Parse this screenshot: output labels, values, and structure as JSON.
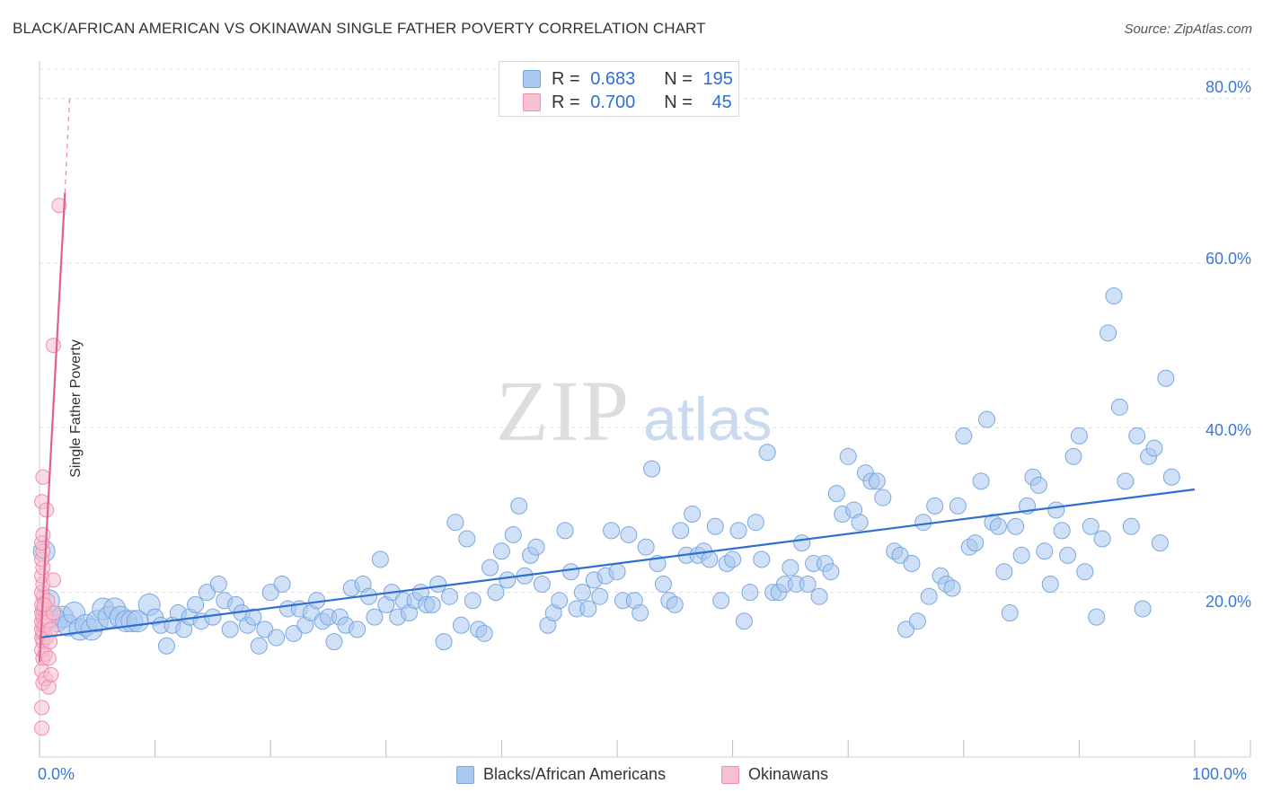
{
  "title": "BLACK/AFRICAN AMERICAN VS OKINAWAN SINGLE FATHER POVERTY CORRELATION CHART",
  "source": "Source: ZipAtlas.com",
  "watermark": {
    "zip": "ZIP",
    "atlas": "atlas"
  },
  "stats": [
    {
      "r_label": "R =",
      "r_value": "0.683",
      "n_label": "N =",
      "n_value": "195",
      "color": "#aac8f0",
      "border": "#7aa7e0"
    },
    {
      "r_label": "R =",
      "r_value": "0.700",
      "n_label": "N =",
      "n_value": "45",
      "color": "#f7bfd0",
      "border": "#ec8fac"
    }
  ],
  "legend": [
    {
      "label": "Blacks/African Americans",
      "color": "#aac8f0",
      "border": "#7aa7e0"
    },
    {
      "label": "Okinawans",
      "color": "#f7bfd0",
      "border": "#ec8fac"
    }
  ],
  "chart_data": {
    "type": "scatter",
    "title": "BLACK/AFRICAN AMERICAN VS OKINAWAN SINGLE FATHER POVERTY CORRELATION CHART",
    "xlabel": "",
    "ylabel": "Single Father Poverty",
    "xlim": [
      0,
      100
    ],
    "ylim": [
      0,
      83
    ],
    "x_tick_labels": [
      "0.0%",
      "100.0%"
    ],
    "y_ticks": [
      20,
      40,
      60,
      80
    ],
    "y_tick_labels": [
      "20.0%",
      "40.0%",
      "60.0%",
      "80.0%"
    ],
    "grid": true,
    "legend_position": "bottom",
    "series": [
      {
        "name": "Blacks/African Americans",
        "color": "#aac8f0",
        "edge": "#7aa7e0",
        "trend": {
          "x0": 0,
          "y0": 14.5,
          "x1": 100,
          "y1": 32.5,
          "color": "#2f6fcf"
        },
        "points": [
          [
            0.4,
            25
          ],
          [
            0.8,
            19
          ],
          [
            1.2,
            17
          ],
          [
            1.5,
            16.5
          ],
          [
            2,
            17
          ],
          [
            2.5,
            16
          ],
          [
            3,
            17.5
          ],
          [
            3.5,
            15.5
          ],
          [
            4,
            16
          ],
          [
            4.5,
            15.5
          ],
          [
            5,
            16.5
          ],
          [
            5.5,
            18
          ],
          [
            6,
            17
          ],
          [
            6.5,
            18
          ],
          [
            7,
            17
          ],
          [
            7.5,
            16.5
          ],
          [
            8,
            16.5
          ],
          [
            8.5,
            16.5
          ],
          [
            9.5,
            18.5
          ],
          [
            10,
            17
          ],
          [
            10.5,
            16
          ],
          [
            11,
            13.5
          ],
          [
            11.5,
            16
          ],
          [
            12,
            17.5
          ],
          [
            12.5,
            15.5
          ],
          [
            13,
            17
          ],
          [
            13.5,
            18.5
          ],
          [
            14,
            16.5
          ],
          [
            14.5,
            20
          ],
          [
            15,
            17
          ],
          [
            15.5,
            21
          ],
          [
            16,
            19
          ],
          [
            16.5,
            15.5
          ],
          [
            17,
            18.5
          ],
          [
            17.5,
            17.5
          ],
          [
            18,
            16
          ],
          [
            18.5,
            17
          ],
          [
            19,
            13.5
          ],
          [
            19.5,
            15.5
          ],
          [
            20,
            20
          ],
          [
            20.5,
            14.5
          ],
          [
            21,
            21
          ],
          [
            21.5,
            18
          ],
          [
            22,
            15
          ],
          [
            22.5,
            18
          ],
          [
            23,
            16
          ],
          [
            23.5,
            17.5
          ],
          [
            24,
            19
          ],
          [
            24.5,
            16.5
          ],
          [
            25,
            17
          ],
          [
            25.5,
            14
          ],
          [
            26,
            17
          ],
          [
            26.5,
            16
          ],
          [
            27,
            20.5
          ],
          [
            27.5,
            15.5
          ],
          [
            28,
            21
          ],
          [
            28.5,
            19.5
          ],
          [
            29,
            17
          ],
          [
            29.5,
            24
          ],
          [
            30,
            18.5
          ],
          [
            30.5,
            20
          ],
          [
            31,
            17
          ],
          [
            31.5,
            19
          ],
          [
            32,
            17.5
          ],
          [
            32.5,
            19
          ],
          [
            33,
            20
          ],
          [
            33.5,
            18.5
          ],
          [
            34,
            18.5
          ],
          [
            34.5,
            21
          ],
          [
            35,
            14
          ],
          [
            35.5,
            19.5
          ],
          [
            36,
            28.5
          ],
          [
            36.5,
            16
          ],
          [
            37,
            26.5
          ],
          [
            37.5,
            19
          ],
          [
            38,
            15.5
          ],
          [
            38.5,
            15
          ],
          [
            39,
            23
          ],
          [
            39.5,
            20
          ],
          [
            40,
            25
          ],
          [
            40.5,
            21.5
          ],
          [
            41,
            27
          ],
          [
            41.5,
            30.5
          ],
          [
            42,
            22
          ],
          [
            42.5,
            24.5
          ],
          [
            43,
            25.5
          ],
          [
            43.5,
            21
          ],
          [
            44,
            16
          ],
          [
            44.5,
            17.5
          ],
          [
            45,
            19
          ],
          [
            45.5,
            27.5
          ],
          [
            46,
            22.5
          ],
          [
            46.5,
            18
          ],
          [
            47,
            20
          ],
          [
            47.5,
            18
          ],
          [
            48,
            21.5
          ],
          [
            48.5,
            19.5
          ],
          [
            49,
            22
          ],
          [
            49.5,
            27.5
          ],
          [
            50,
            22.5
          ],
          [
            50.5,
            19
          ],
          [
            51,
            27
          ],
          [
            51.5,
            19
          ],
          [
            52,
            17.5
          ],
          [
            52.5,
            25.5
          ],
          [
            53,
            35
          ],
          [
            53.5,
            23.5
          ],
          [
            54,
            21
          ],
          [
            54.5,
            19
          ],
          [
            55,
            18.5
          ],
          [
            55.5,
            27.5
          ],
          [
            56,
            24.5
          ],
          [
            56.5,
            29.5
          ],
          [
            57,
            24.5
          ],
          [
            57.5,
            25
          ],
          [
            58,
            24
          ],
          [
            58.5,
            28
          ],
          [
            59,
            19
          ],
          [
            59.5,
            23.5
          ],
          [
            60,
            24
          ],
          [
            60.5,
            27.5
          ],
          [
            61,
            16.5
          ],
          [
            61.5,
            20
          ],
          [
            62,
            28.5
          ],
          [
            62.5,
            24
          ],
          [
            63,
            37
          ],
          [
            63.5,
            20
          ],
          [
            64,
            20
          ],
          [
            64.5,
            21
          ],
          [
            65,
            23
          ],
          [
            65.5,
            21
          ],
          [
            66,
            26
          ],
          [
            66.5,
            21
          ],
          [
            67,
            23.5
          ],
          [
            67.5,
            19.5
          ],
          [
            68,
            23.5
          ],
          [
            68.5,
            22.5
          ],
          [
            69,
            32
          ],
          [
            69.5,
            29.5
          ],
          [
            70,
            36.5
          ],
          [
            70.5,
            30
          ],
          [
            71,
            28.5
          ],
          [
            71.5,
            34.5
          ],
          [
            72,
            33.5
          ],
          [
            72.5,
            33.5
          ],
          [
            73,
            31.5
          ],
          [
            74,
            25
          ],
          [
            74.5,
            24.5
          ],
          [
            75,
            15.5
          ],
          [
            75.5,
            23.5
          ],
          [
            76,
            16.5
          ],
          [
            76.5,
            28.5
          ],
          [
            77,
            19.5
          ],
          [
            77.5,
            30.5
          ],
          [
            78,
            22
          ],
          [
            78.5,
            21
          ],
          [
            79,
            20.5
          ],
          [
            79.5,
            30.5
          ],
          [
            80,
            39
          ],
          [
            80.5,
            25.5
          ],
          [
            81,
            26
          ],
          [
            81.5,
            33.5
          ],
          [
            82,
            41
          ],
          [
            82.5,
            28.5
          ],
          [
            83,
            28
          ],
          [
            83.5,
            22.5
          ],
          [
            84,
            17.5
          ],
          [
            84.5,
            28
          ],
          [
            85,
            24.5
          ],
          [
            85.5,
            30.5
          ],
          [
            86,
            34
          ],
          [
            86.5,
            33
          ],
          [
            87,
            25
          ],
          [
            87.5,
            21
          ],
          [
            88,
            30
          ],
          [
            88.5,
            27.5
          ],
          [
            89,
            24.5
          ],
          [
            89.5,
            36.5
          ],
          [
            90,
            39
          ],
          [
            90.5,
            22.5
          ],
          [
            91,
            28
          ],
          [
            91.5,
            17
          ],
          [
            92,
            26.5
          ],
          [
            92.5,
            51.5
          ],
          [
            93,
            56
          ],
          [
            93.5,
            42.5
          ],
          [
            94,
            33.5
          ],
          [
            94.5,
            28
          ],
          [
            95,
            39
          ],
          [
            95.5,
            18
          ],
          [
            96,
            36.5
          ],
          [
            96.5,
            37.5
          ],
          [
            97,
            26
          ],
          [
            97.5,
            46
          ],
          [
            98,
            34
          ]
        ]
      },
      {
        "name": "Okinawans",
        "color": "#f7bfd0",
        "edge": "#ec8fac",
        "trend": {
          "x0": 0,
          "y0": 11.5,
          "x1": 2.2,
          "y1": 68.5,
          "color": "#e0608e",
          "dash_to": {
            "x": 2.6,
            "y": 80
          }
        },
        "points": [
          [
            0.2,
            3.5
          ],
          [
            0.2,
            6
          ],
          [
            0.3,
            9
          ],
          [
            0.2,
            10.5
          ],
          [
            0.3,
            12
          ],
          [
            0.2,
            13
          ],
          [
            0.3,
            14
          ],
          [
            0.2,
            14.5
          ],
          [
            0.3,
            15
          ],
          [
            0.2,
            15.5
          ],
          [
            0.3,
            16
          ],
          [
            0.2,
            16.5
          ],
          [
            0.3,
            17
          ],
          [
            0.2,
            17.5
          ],
          [
            0.3,
            18
          ],
          [
            0.2,
            18.5
          ],
          [
            0.3,
            19.5
          ],
          [
            0.2,
            20
          ],
          [
            0.3,
            21
          ],
          [
            0.2,
            22
          ],
          [
            0.3,
            23
          ],
          [
            0.2,
            24
          ],
          [
            0.3,
            25
          ],
          [
            0.2,
            26
          ],
          [
            0.3,
            27
          ],
          [
            0.2,
            31
          ],
          [
            0.3,
            34
          ],
          [
            0.5,
            9.5
          ],
          [
            0.5,
            12.5
          ],
          [
            0.6,
            14.5
          ],
          [
            0.5,
            16
          ],
          [
            0.6,
            17
          ],
          [
            0.7,
            19
          ],
          [
            0.6,
            30
          ],
          [
            0.8,
            8.5
          ],
          [
            0.8,
            12
          ],
          [
            0.9,
            14
          ],
          [
            0.8,
            16.5
          ],
          [
            1.0,
            10
          ],
          [
            1.0,
            15.5
          ],
          [
            1.2,
            17.5
          ],
          [
            1.2,
            21.5
          ],
          [
            1.2,
            50
          ],
          [
            1.7,
            67
          ],
          [
            0.4,
            18.5
          ]
        ]
      }
    ]
  }
}
